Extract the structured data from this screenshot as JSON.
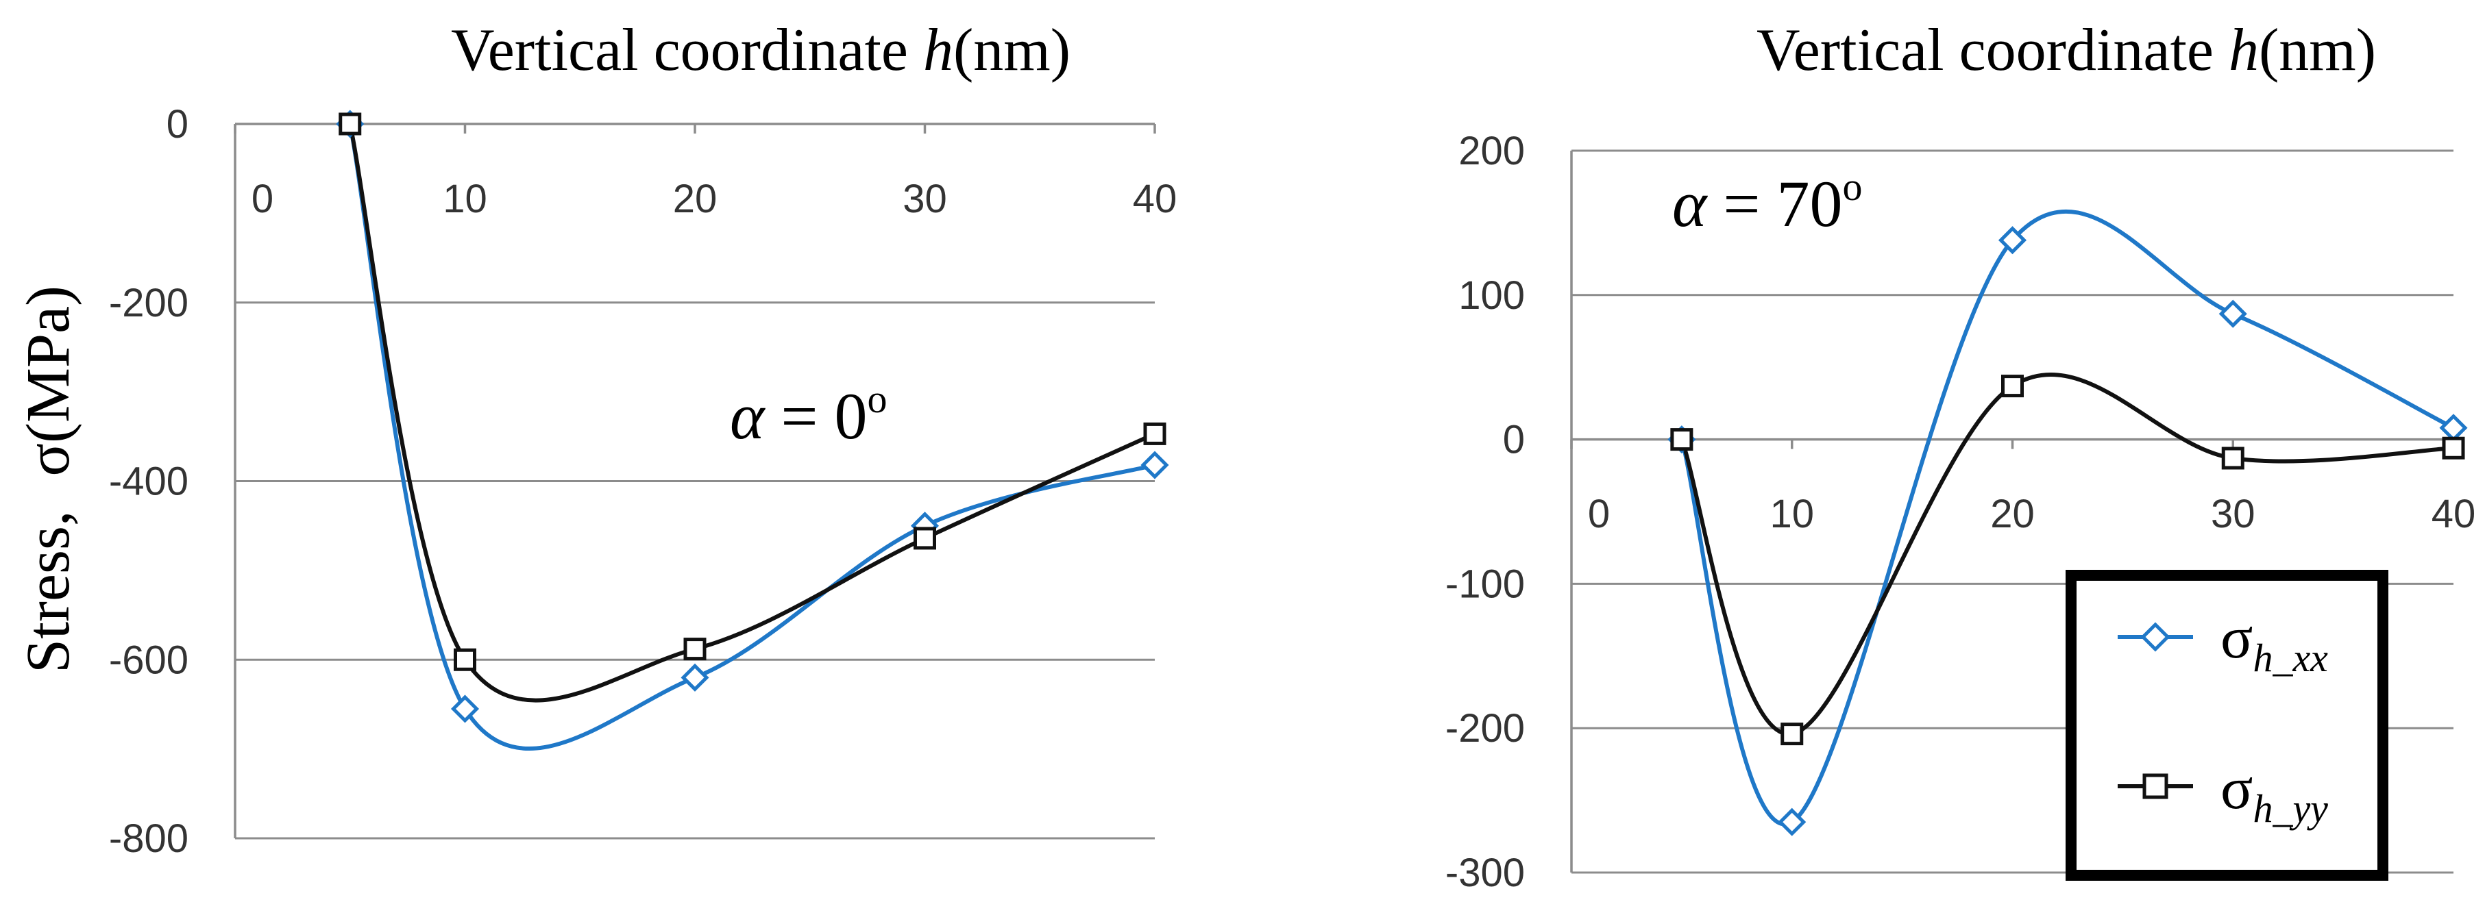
{
  "figure": {
    "ylabel_prefix": "Stress,",
    "ylabel_main": "σ(MPa)"
  },
  "legend": {
    "entries": [
      {
        "symbol": "σ",
        "sub": "h_xx",
        "series": "sigma_h_xx"
      },
      {
        "symbol": "σ",
        "sub": "h_yy",
        "series": "sigma_h_yy"
      }
    ]
  },
  "chart_data": [
    {
      "type": "line",
      "title_text": "Vertical coordinate ",
      "title_italic": "h",
      "title_unit": "(nm)",
      "annotation_var": "α",
      "annotation_eq": " = 0",
      "annotation_deg": "o",
      "xlim": [
        0,
        40
      ],
      "xticks": [
        0,
        10,
        20,
        30,
        40
      ],
      "ylim": [
        -800,
        0
      ],
      "yticks": [
        0,
        -200,
        -400,
        -600,
        -800
      ],
      "series": [
        {
          "name": "σh_xx",
          "marker": "diamond",
          "color": "#1f78c8",
          "x": [
            5,
            10,
            20,
            30,
            40
          ],
          "y": [
            0,
            -655,
            -620,
            -450,
            -382
          ]
        },
        {
          "name": "σh_yy",
          "marker": "square",
          "color": "#111111",
          "x": [
            5,
            10,
            20,
            30,
            40
          ],
          "y": [
            0,
            -600,
            -588,
            -464,
            -347
          ]
        }
      ]
    },
    {
      "type": "line",
      "title_text": "Vertical coordinate ",
      "title_italic": "h",
      "title_unit": "(nm)",
      "annotation_var": "α",
      "annotation_eq": " = 70",
      "annotation_deg": "o",
      "xlim": [
        0,
        40
      ],
      "xticks": [
        0,
        10,
        20,
        30,
        40
      ],
      "ylim": [
        -300,
        200
      ],
      "yticks": [
        200,
        100,
        0,
        -100,
        -200,
        -300
      ],
      "series": [
        {
          "name": "σh_xx",
          "marker": "diamond",
          "color": "#1f78c8",
          "x": [
            5,
            10,
            20,
            30,
            40
          ],
          "y": [
            0,
            -265,
            138,
            87,
            8
          ]
        },
        {
          "name": "σh_yy",
          "marker": "square",
          "color": "#111111",
          "x": [
            5,
            10,
            20,
            30,
            40
          ],
          "y": [
            0,
            -204,
            37,
            -13,
            -6
          ]
        }
      ]
    }
  ]
}
